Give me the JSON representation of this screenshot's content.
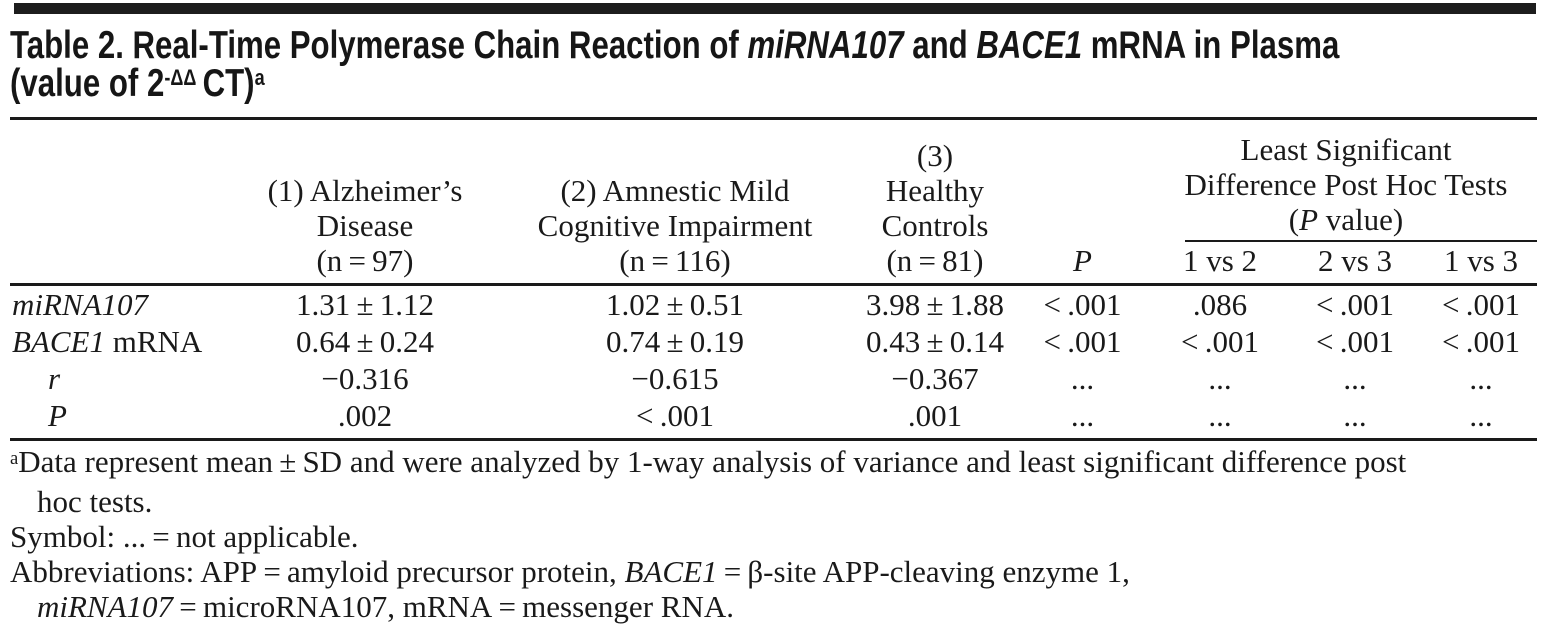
{
  "page": {
    "background": "#ffffff",
    "bar_color": "#1d1d1d",
    "text_color": "#1a1a1a"
  },
  "title": {
    "line1": [
      {
        "t": "Table 2. Real-Time Polymerase Chain Reaction of "
      },
      {
        "t": "miRNA107",
        "s": "i"
      },
      {
        "t": " and "
      },
      {
        "t": "BACE1",
        "s": "i"
      },
      {
        "t": " mRNA in Plasma"
      }
    ],
    "line2": [
      {
        "t": "(value of 2"
      },
      {
        "t": "-ΔΔ",
        "s": "sup"
      },
      {
        "t": " CT)"
      },
      {
        "t": "a",
        "s": "sup"
      }
    ]
  },
  "header": {
    "col1_lines": [
      "(1) Alzheimer’s",
      "Disease",
      "(n = 97)"
    ],
    "col2_lines": [
      "(2) Amnestic Mild",
      "Cognitive Impairment",
      "(n = 116)"
    ],
    "col3_lines": [
      "(3)",
      "Healthy",
      "Controls",
      "(n = 81)"
    ],
    "p_col": [
      {
        "t": "P",
        "s": "i"
      }
    ],
    "group": {
      "line1": "Least Significant",
      "line2": "Difference Post Hoc Tests",
      "line3": [
        {
          "t": "("
        },
        {
          "t": "P",
          "s": "i"
        },
        {
          "t": " value)"
        }
      ],
      "subcols": [
        "1 vs 2",
        "2 vs 3",
        "1 vs 3"
      ]
    }
  },
  "rows": [
    {
      "label": [
        {
          "t": "miRNA107",
          "s": "i"
        }
      ],
      "values": [
        "1.31 ± 1.12",
        "1.02 ± 0.51",
        "3.98 ± 1.88",
        "< .001",
        ".086",
        "< .001",
        "< .001"
      ]
    },
    {
      "label": [
        {
          "t": "BACE1",
          "s": "i"
        },
        {
          "t": " mRNA"
        }
      ],
      "values": [
        "0.64 ± 0.24",
        "0.74 ± 0.19",
        "0.43 ± 0.14",
        "< .001",
        "< .001",
        "< .001",
        "< .001"
      ]
    },
    {
      "label": [
        {
          "t": "r",
          "s": "i"
        }
      ],
      "values": [
        "−0.316",
        "−0.615",
        "−0.367",
        "...",
        "...",
        "...",
        "..."
      ]
    },
    {
      "label": [
        {
          "t": "P",
          "s": "i"
        }
      ],
      "values": [
        ".002",
        "< .001",
        ".001",
        "...",
        "...",
        "...",
        "..."
      ]
    }
  ],
  "footnotes": {
    "f1_line1": [
      {
        "t": "a",
        "s": "sup"
      },
      {
        "t": "Data represent mean ± SD and were analyzed by 1-way analysis of variance and least significant difference post"
      }
    ],
    "f1_line2": [
      {
        "t": "hoc tests."
      }
    ],
    "f2": [
      {
        "t": "Symbol: ... = not applicable."
      }
    ],
    "f3_line1": [
      {
        "t": "Abbreviations: APP = amyloid precursor protein, "
      },
      {
        "t": "BACE1",
        "s": "i"
      },
      {
        "t": " = β-site APP-cleaving enzyme 1,"
      }
    ],
    "f3_line2": [
      {
        "t": "miRNA107",
        "s": "i"
      },
      {
        "t": " = microRNA107, mRNA = messenger RNA."
      }
    ]
  }
}
